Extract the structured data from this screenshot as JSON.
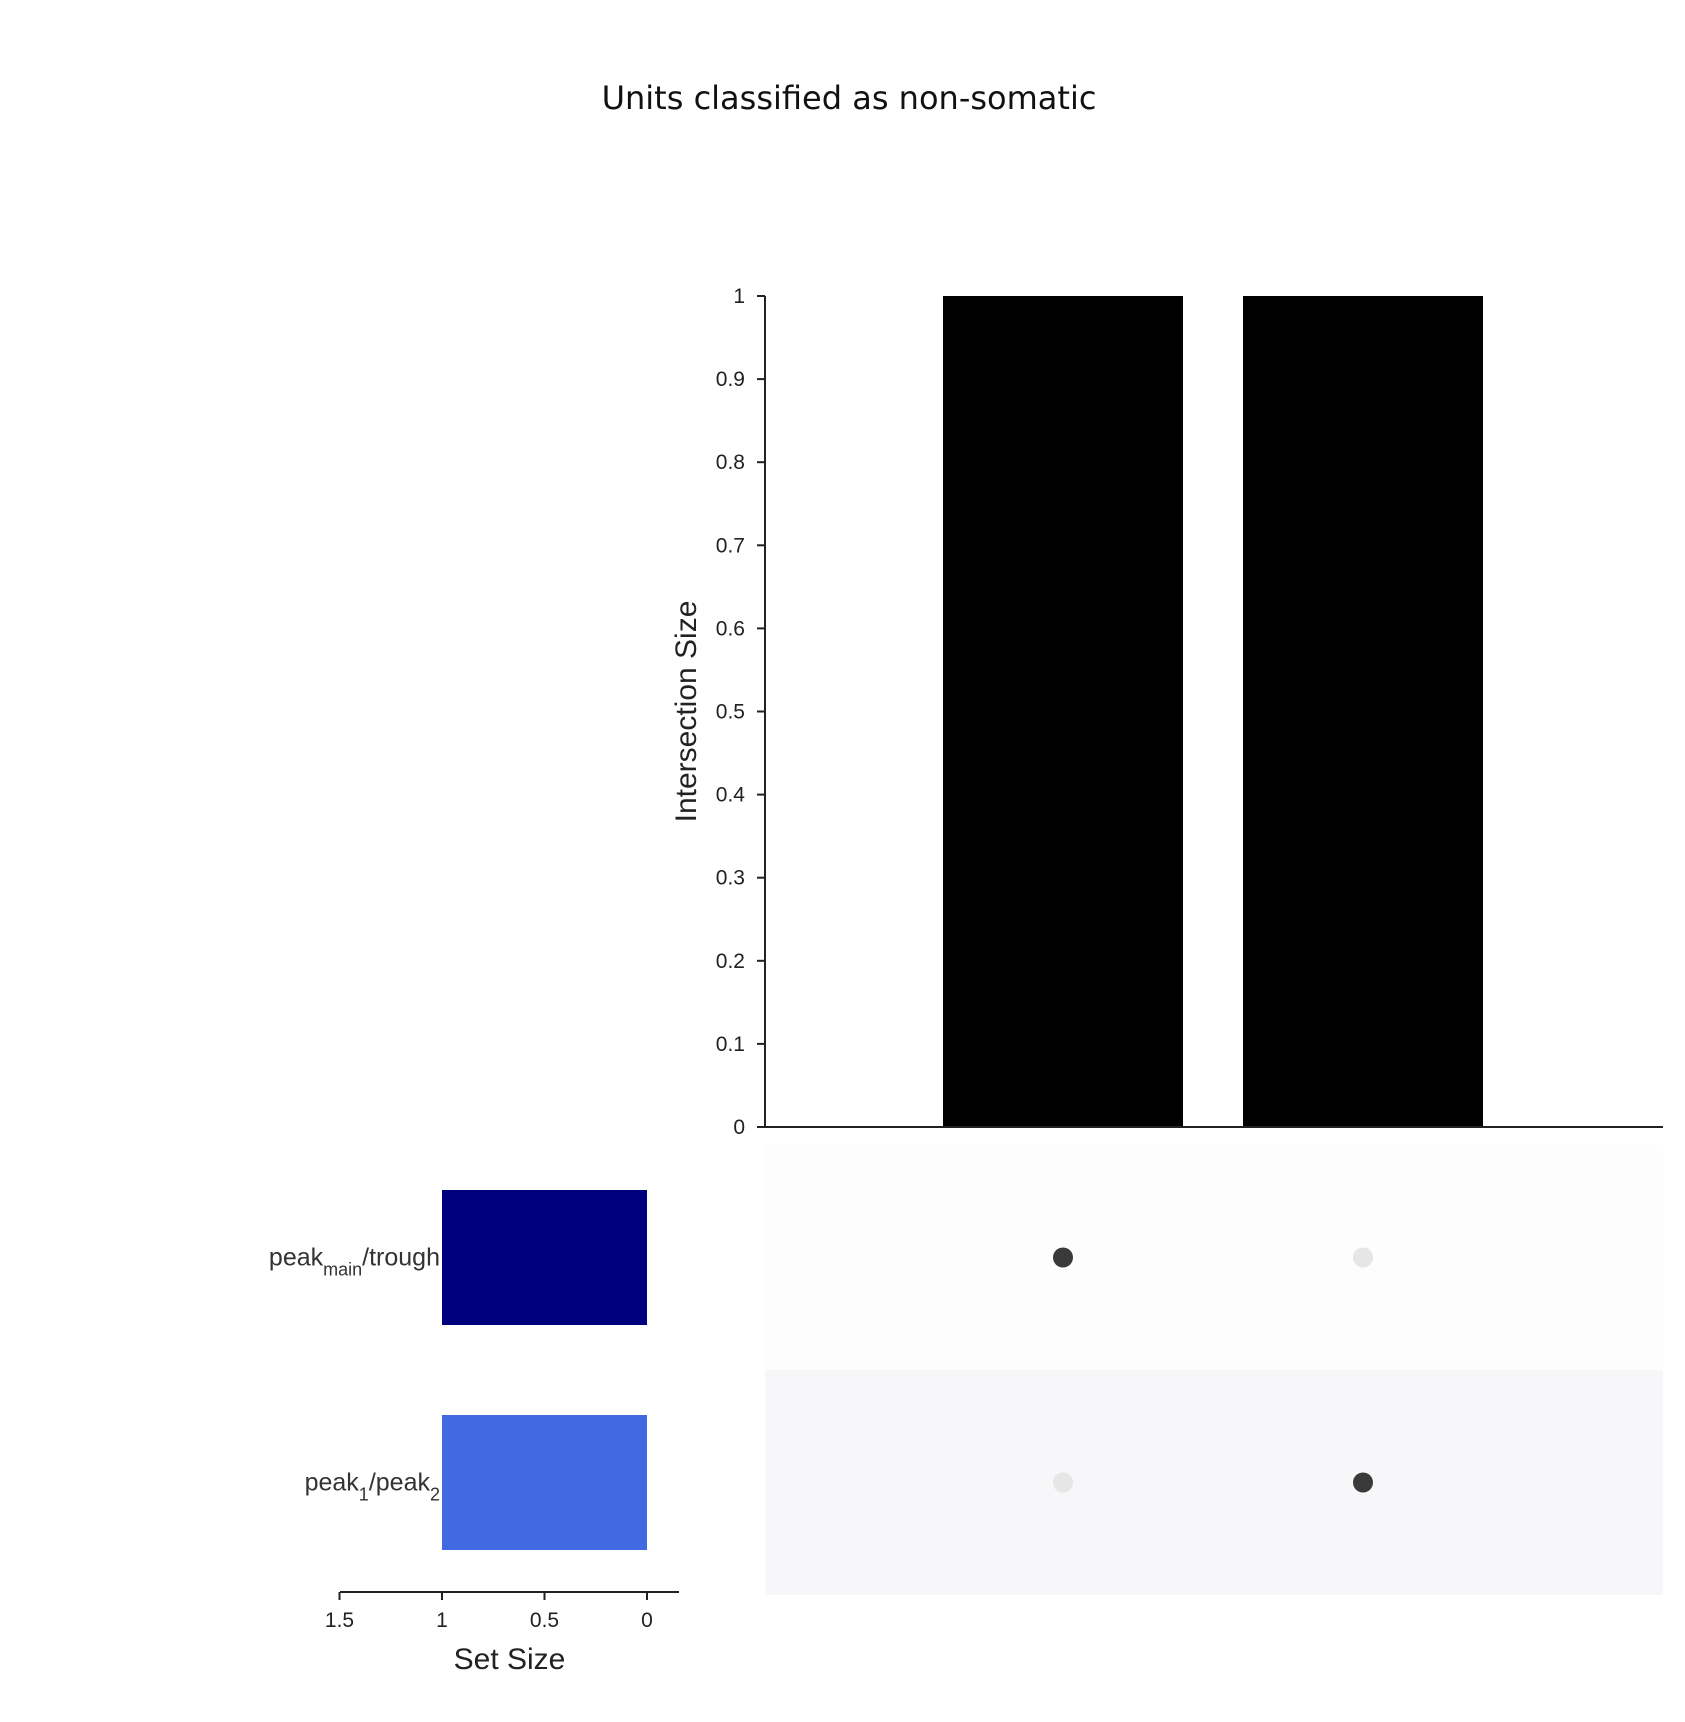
{
  "chart_data": {
    "type": "bar",
    "title": "Units classified as non-somatic",
    "intersections": {
      "ylabel": "Intersection Size",
      "ylim": [
        0,
        1
      ],
      "yticks": [
        "0",
        "0.1",
        "0.2",
        "0.3",
        "0.4",
        "0.5",
        "0.6",
        "0.7",
        "0.8",
        "0.9",
        "1"
      ],
      "values": [
        1,
        1
      ],
      "bar_color": "#000000"
    },
    "sets": [
      {
        "base": "peak",
        "sub1": "main",
        "mid": "/trough",
        "sub2": "",
        "size": 1,
        "color": "#00007f"
      },
      {
        "base": "peak",
        "sub1": "1",
        "mid": "/peak",
        "sub2": "2",
        "size": 1,
        "color": "#4169e1"
      }
    ],
    "set_size_axis": {
      "xlabel": "Set Size",
      "xlim": [
        1.5,
        0
      ],
      "xticks": [
        "1.5",
        "1",
        "0.5",
        "0"
      ]
    },
    "matrix": {
      "membership": [
        [
          1,
          0
        ],
        [
          0,
          1
        ]
      ],
      "active_dot_color": "#3a3a3a",
      "inactive_dot_color": "#e6e6e6",
      "row_band_colors": [
        "#fdfdfd",
        "#f7f6f8"
      ]
    }
  }
}
